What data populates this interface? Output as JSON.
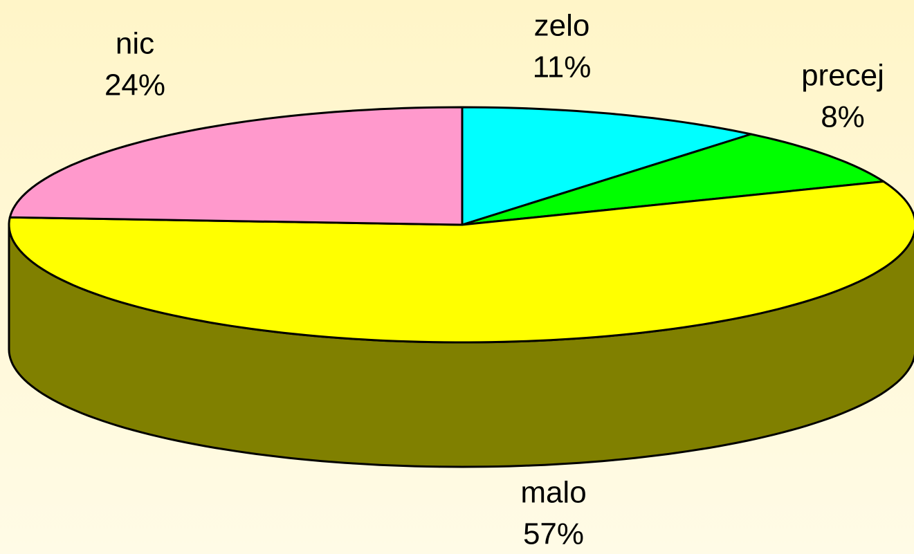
{
  "chart_data": {
    "type": "pie",
    "categories": [
      "zelo",
      "precej",
      "malo",
      "nic"
    ],
    "values": [
      11,
      8,
      57,
      24
    ],
    "value_labels": [
      "11%",
      "8%",
      "57%",
      "24%"
    ],
    "colors": [
      "#00ffff",
      "#00ff00",
      "#ffff00",
      "#ff99cc"
    ]
  }
}
